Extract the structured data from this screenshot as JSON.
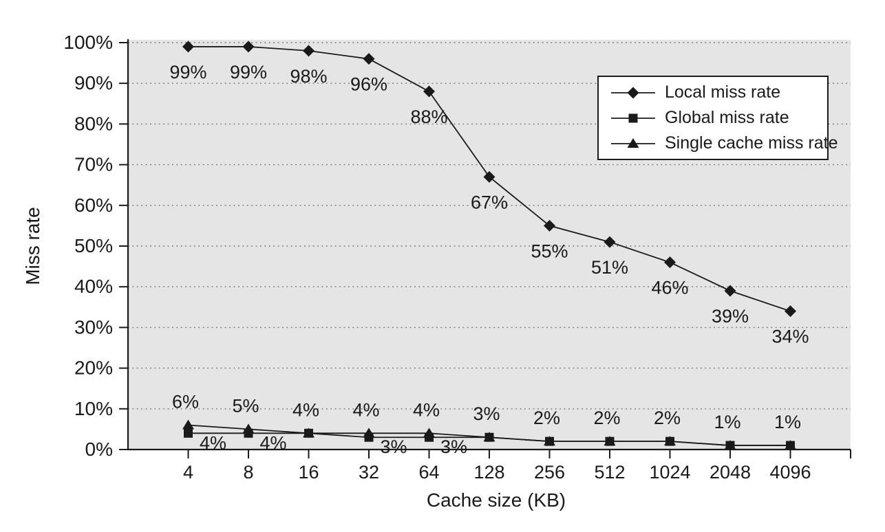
{
  "chart_data": {
    "type": "line",
    "title": "",
    "xlabel": "Cache size (KB)",
    "ylabel": "Miss rate",
    "categories": [
      "4",
      "8",
      "16",
      "32",
      "64",
      "128",
      "256",
      "512",
      "1024",
      "2048",
      "4096"
    ],
    "y_tick_labels": [
      "0%",
      "10%",
      "20%",
      "30%",
      "40%",
      "50%",
      "60%",
      "70%",
      "80%",
      "90%",
      "100%"
    ],
    "ylim": [
      0,
      100
    ],
    "grid": "horizontal-dotted",
    "legend_position": "inside-top-right",
    "series": [
      {
        "name": "Local miss rate",
        "marker": "diamond",
        "values": [
          99,
          99,
          98,
          96,
          88,
          67,
          55,
          51,
          46,
          39,
          34
        ],
        "point_labels": [
          "99%",
          "99%",
          "98%",
          "96%",
          "88%",
          "67%",
          "55%",
          "51%",
          "46%",
          "39%",
          "34%"
        ],
        "label_side": "below"
      },
      {
        "name": "Global miss rate",
        "marker": "square",
        "values": [
          4,
          4,
          4,
          3,
          3,
          3,
          2,
          2,
          2,
          1,
          1
        ],
        "point_labels": [
          "4%",
          "4%",
          "",
          "3%",
          "3%",
          "",
          "",
          "",
          "",
          "",
          ""
        ],
        "label_side": "below-right"
      },
      {
        "name": "Single cache miss rate",
        "marker": "triangle",
        "values": [
          6,
          5,
          4,
          4,
          4,
          3,
          2,
          2,
          2,
          1,
          1
        ],
        "point_labels": [
          "6%",
          "5%",
          "4%",
          "4%",
          "4%",
          "3%",
          "2%",
          "2%",
          "2%",
          "1%",
          "1%"
        ],
        "label_side": "above"
      }
    ],
    "colors": {
      "series": "#1a1a1a",
      "plot_background": "#e5e5e5",
      "gridline": "#707070",
      "axis": "#1a1a1a",
      "text": "#1a1a1a",
      "legend_background": "#ffffff",
      "legend_border": "#1a1a1a",
      "page_background": "#ffffff"
    }
  }
}
